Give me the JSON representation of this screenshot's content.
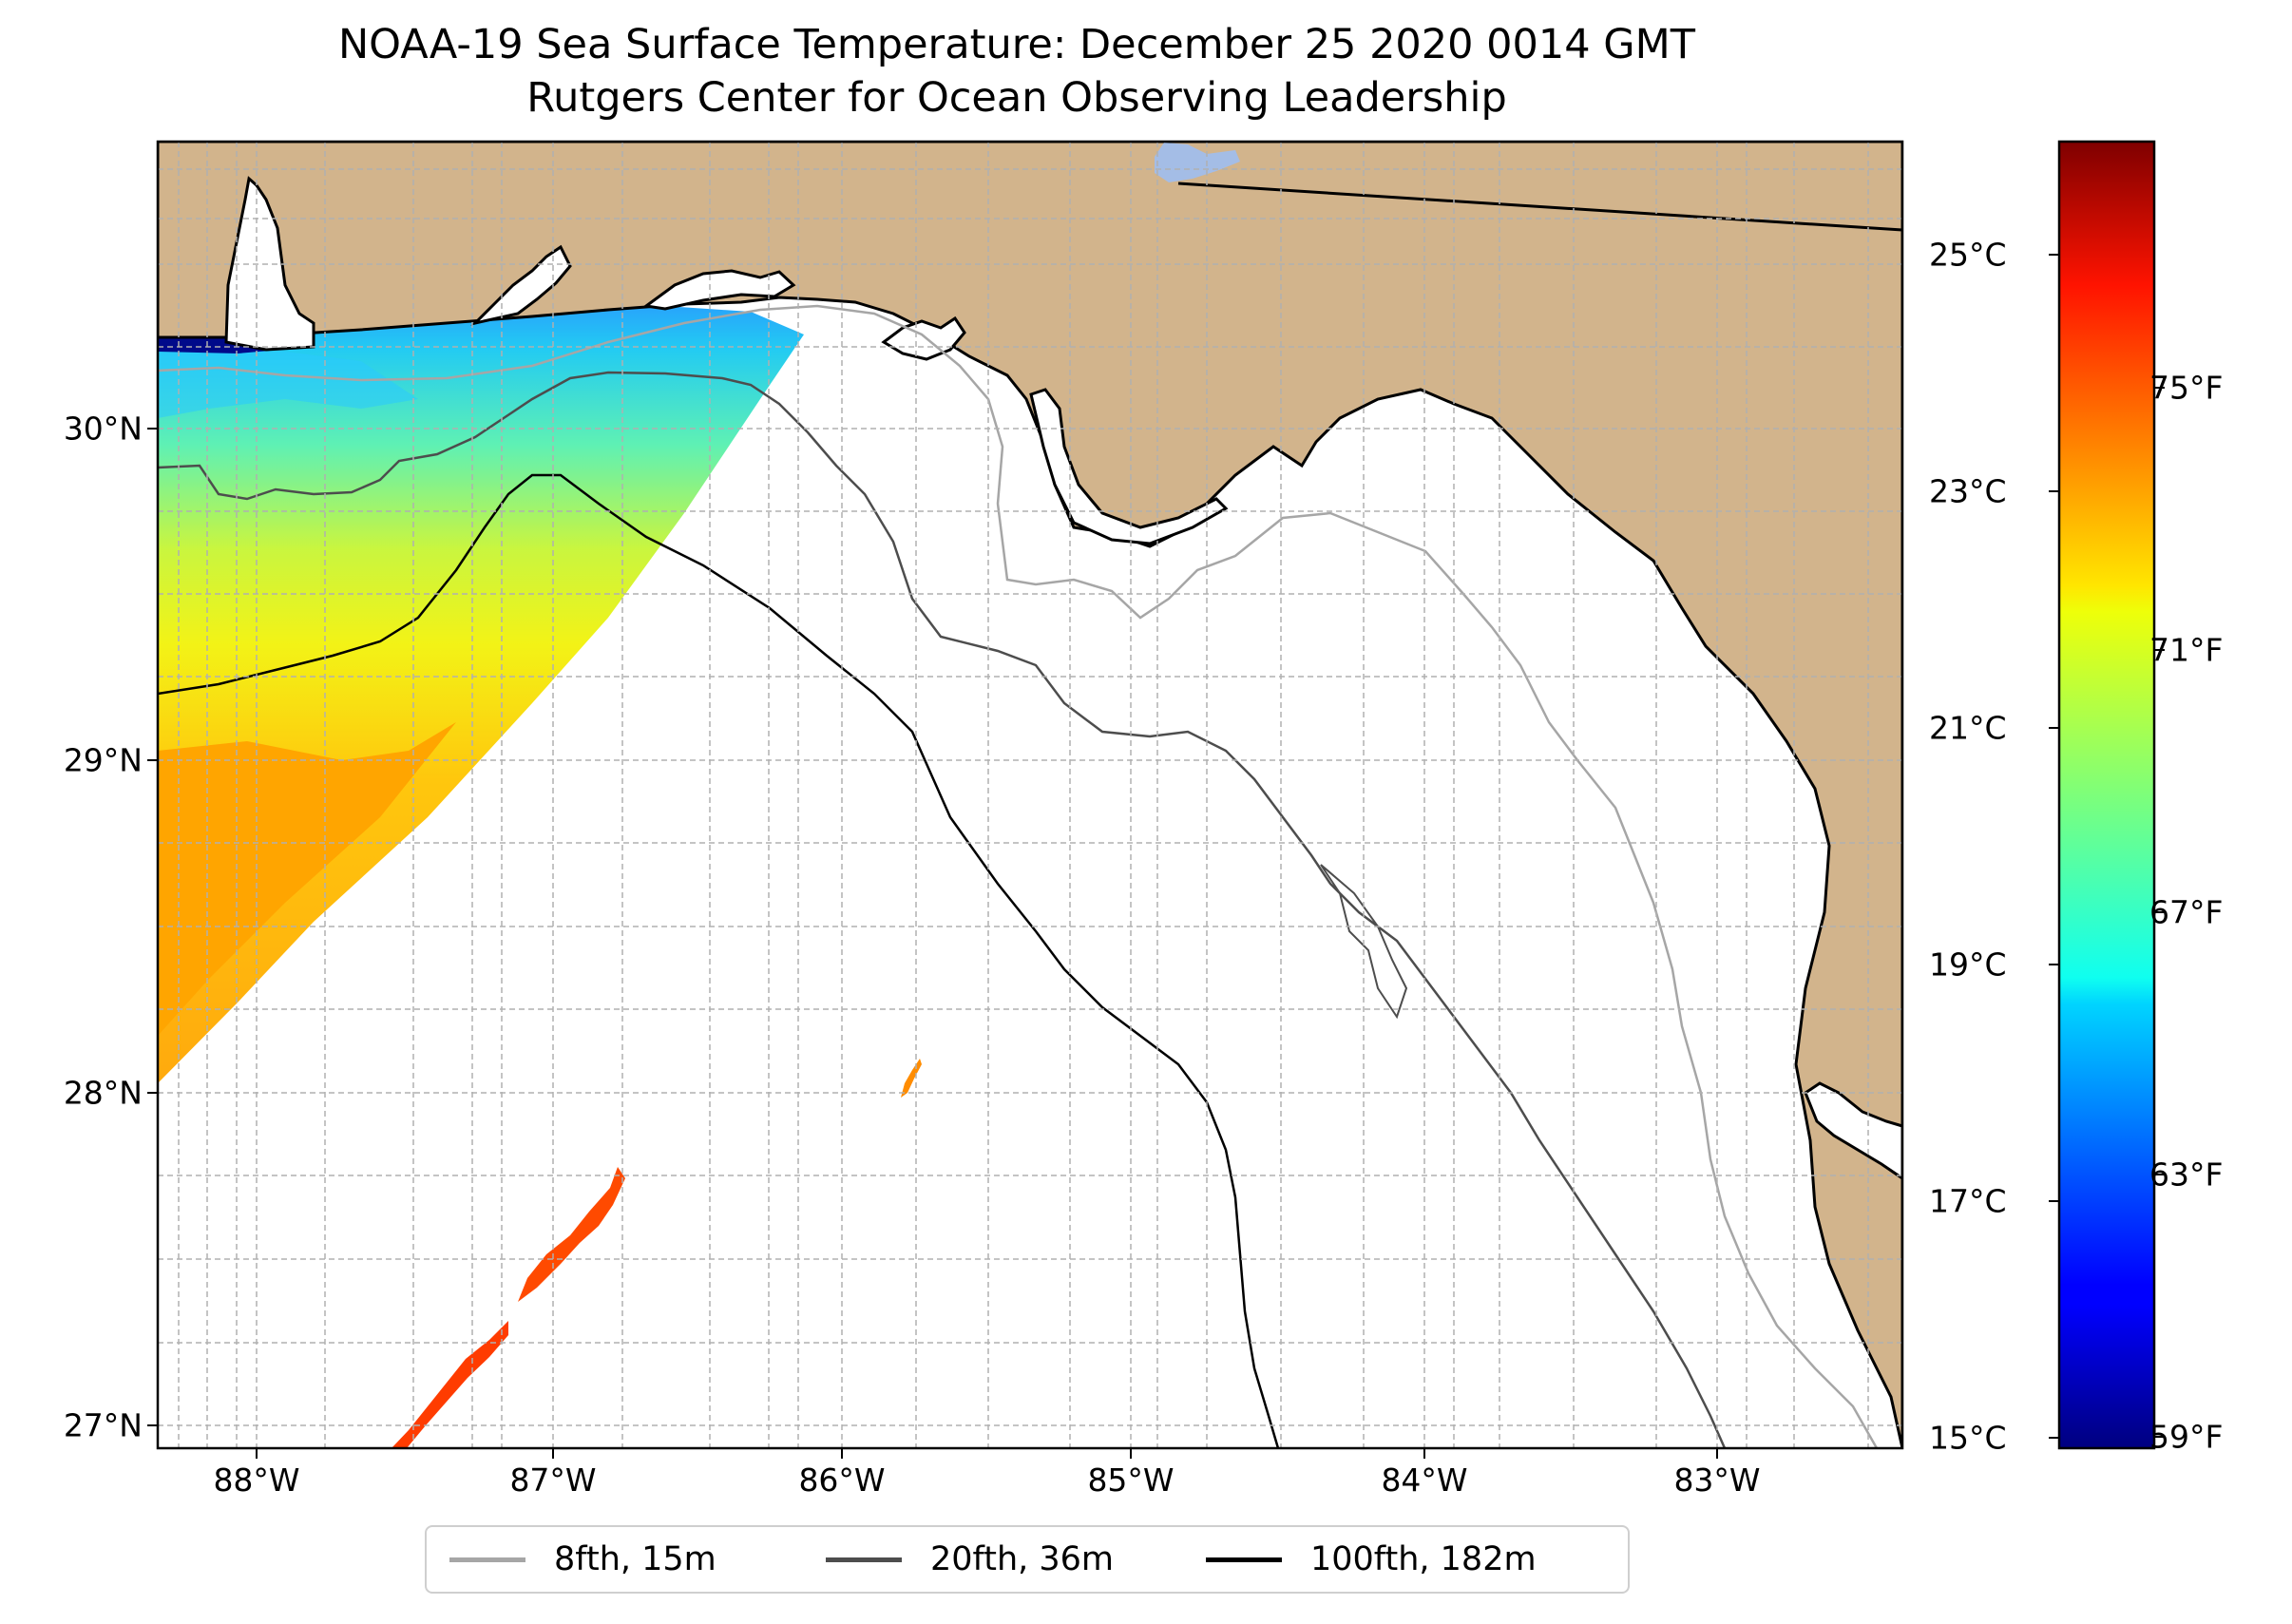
{
  "title": "NOAA-19 Sea Surface Temperature: December 25 2020 0014 GMT",
  "subtitle": "Rutgers Center for Ocean Observing Leadership",
  "x_ticks": [
    "88°W",
    "87°W",
    "86°W",
    "85°W",
    "84°W",
    "83°W"
  ],
  "y_ticks": [
    "30°N",
    "29°N",
    "28°N",
    "27°N"
  ],
  "colorbar": {
    "celsius_ticks": [
      "25°C",
      "23°C",
      "21°C",
      "19°C",
      "17°C",
      "15°C"
    ],
    "fahrenheit_ticks": [
      "75°F",
      "71°F",
      "67°F",
      "63°F",
      "59°F"
    ]
  },
  "legend": [
    {
      "label": "8fth, 15m",
      "color": "#a6a6a6"
    },
    {
      "label": "20fth, 36m",
      "color": "#4d4d4d"
    },
    {
      "label": "100fth, 182m",
      "color": "#000000"
    }
  ],
  "colors": {
    "land": "#d2b48c",
    "water_feature": "#a4bde6",
    "grid": "#b0b0b0"
  },
  "map_extent": {
    "lon": [
      -88.33,
      -82.4
    ],
    "lat": [
      26.93,
      30.86
    ]
  },
  "colorbar_range_celsius": [
    15,
    26
  ]
}
